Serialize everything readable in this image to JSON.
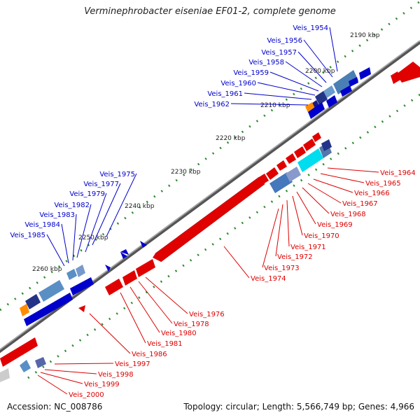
{
  "title": "Verminephrobacter eiseniae EF01-2, complete genome",
  "accession": "Accession: NC_008786",
  "summary": "Topology: circular; Length: 5,566,749 bp; Genes: 4,966",
  "colors": {
    "forward": "#0000cc",
    "reverse": "#dd0000",
    "backbone": "#777777",
    "tick": "#2e8b2e"
  },
  "scale_labels": [
    "2190 kbp",
    "2200 kbp",
    "2210 kbp",
    "2220 kbp",
    "2230 kbp",
    "2240 kbp",
    "2250 kbp",
    "2260 kbp"
  ],
  "forward_genes": [
    "Veis_1954",
    "Veis_1956",
    "Veis_1957",
    "Veis_1958",
    "Veis_1959",
    "Veis_1960",
    "Veis_1961",
    "Veis_1962",
    "Veis_1975",
    "Veis_1977",
    "Veis_1979",
    "Veis_1982",
    "Veis_1983",
    "Veis_1984",
    "Veis_1985"
  ],
  "reverse_genes": [
    "Veis_1964",
    "Veis_1965",
    "Veis_1966",
    "Veis_1967",
    "Veis_1968",
    "Veis_1969",
    "Veis_1970",
    "Veis_1971",
    "Veis_1972",
    "Veis_1973",
    "Veis_1974",
    "Veis_1976",
    "Veis_1978",
    "Veis_1980",
    "Veis_1981",
    "Veis_1986",
    "Veis_1997",
    "Veis_1998",
    "Veis_1999",
    "Veis_2000"
  ]
}
